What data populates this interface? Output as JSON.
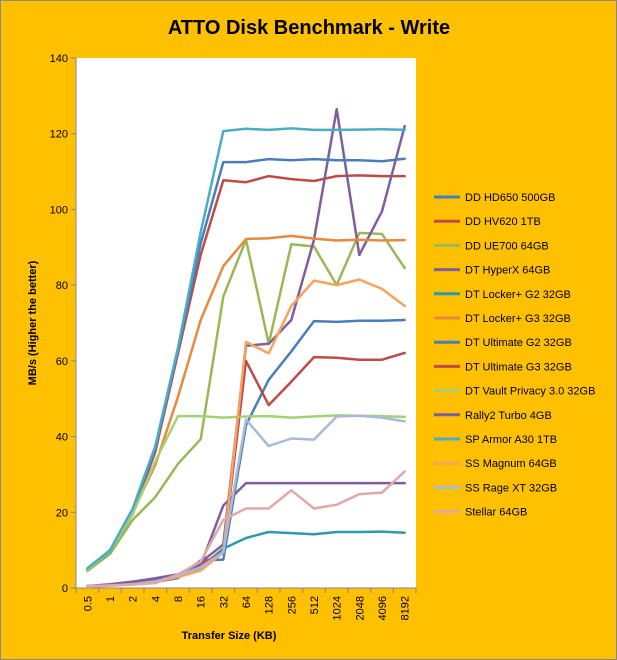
{
  "chart_data": {
    "type": "line",
    "title": "ATTO Disk Benchmark - Write",
    "xlabel": "Transfer Size (KB)",
    "ylabel": "MB/s (Higher the better)",
    "ylim": [
      0,
      140
    ],
    "ytick_step": 20,
    "grid": false,
    "legend_position": "right",
    "categories": [
      "0.5",
      "1",
      "2",
      "4",
      "8",
      "16",
      "32",
      "64",
      "128",
      "256",
      "512",
      "1024",
      "2048",
      "4096",
      "8192"
    ],
    "series": [
      {
        "name": "DD HD650 500GB",
        "color": "#4a7ebb",
        "values": [
          0.5,
          0.7,
          1.0,
          1.6,
          2.6,
          7.3,
          7.5,
          43.0,
          55.0,
          62.5,
          70.5,
          70.3,
          70.6,
          70.6,
          70.8
        ]
      },
      {
        "name": "DD HV620 1TB",
        "color": "#be4b48",
        "values": [
          5.0,
          9.5,
          19.5,
          36.0,
          62.0,
          88.0,
          107.7,
          107.2,
          108.8,
          108.0,
          107.5,
          108.8,
          109.0,
          108.8,
          108.8
        ]
      },
      {
        "name": "DD UE700 64GB",
        "color": "#98b954",
        "values": [
          4.5,
          9.0,
          18.0,
          24.0,
          32.8,
          39.3,
          77.0,
          92.0,
          64.5,
          90.8,
          90.2,
          80.0,
          93.8,
          93.5,
          84.5
        ]
      },
      {
        "name": "DT HyperX 64GB",
        "color": "#7d5fa0",
        "values": [
          0.5,
          0.8,
          1.4,
          2.4,
          3.5,
          6.8,
          11.5,
          64.0,
          64.5,
          70.8,
          92.0,
          126.5,
          88.0,
          99.5,
          122.0
        ]
      },
      {
        "name": "DT Locker+ G2 32GB",
        "color": "#2c9aa8",
        "values": [
          0.5,
          0.7,
          1.1,
          1.8,
          3.0,
          5.4,
          10.4,
          13.2,
          14.8,
          14.5,
          14.2,
          14.8,
          14.8,
          14.9,
          14.6
        ]
      },
      {
        "name": "DT Locker+ G3 32GB",
        "color": "#e8893d",
        "values": [
          4.8,
          9.8,
          20.0,
          32.5,
          50.5,
          70.8,
          85.0,
          92.2,
          92.4,
          93.0,
          92.3,
          91.8,
          92.0,
          91.8,
          91.9
        ]
      },
      {
        "name": "DT Ultimate G2 32GB",
        "color": "#4a7ebb",
        "values": [
          4.8,
          9.6,
          20.5,
          37.0,
          63.0,
          91.0,
          112.5,
          112.5,
          113.3,
          113.0,
          113.3,
          113.0,
          113.0,
          112.7,
          113.4
        ]
      },
      {
        "name": "DT Ultimate G3 32GB",
        "color": "#be4b48",
        "values": [
          0.5,
          0.7,
          1.0,
          1.6,
          3.0,
          6.2,
          9.5,
          60.0,
          48.3,
          54.5,
          61.0,
          60.8,
          60.3,
          60.3,
          62.1
        ]
      },
      {
        "name": "DT Vault Privacy 3.0 32GB",
        "color": "#a6d173",
        "values": [
          4.8,
          9.8,
          19.5,
          33.5,
          45.4,
          45.4,
          45.0,
          45.3,
          45.4,
          45.0,
          45.3,
          45.6,
          45.5,
          45.4,
          45.2
        ]
      },
      {
        "name": "Rally2 Turbo 4GB",
        "color": "#7d5fa0",
        "values": [
          0.5,
          1.0,
          1.7,
          2.6,
          3.6,
          6.0,
          21.8,
          27.7,
          27.7,
          27.7,
          27.7,
          27.7,
          27.7,
          27.7,
          27.7
        ]
      },
      {
        "name": "SP Armor A30 1TB",
        "color": "#4bacc6",
        "values": [
          5.2,
          10.0,
          21.0,
          37.5,
          63.5,
          94.0,
          120.7,
          121.3,
          121.0,
          121.4,
          121.0,
          121.0,
          121.1,
          121.2,
          121.0
        ]
      },
      {
        "name": "SS Magnum 64GB",
        "color": "#f7a35c",
        "values": [
          0.5,
          0.7,
          1.0,
          1.7,
          2.9,
          4.6,
          9.4,
          65.0,
          62.0,
          74.5,
          81.2,
          80.0,
          81.5,
          79.0,
          74.5
        ]
      },
      {
        "name": "SS Rage XT 32GB",
        "color": "#a9b9d8",
        "values": [
          0.4,
          0.6,
          1.0,
          1.7,
          3.3,
          5.5,
          9.5,
          44.5,
          37.5,
          39.5,
          39.2,
          45.3,
          45.5,
          45.0,
          44.0
        ]
      },
      {
        "name": "Stellar 64GB",
        "color": "#e2a8a7",
        "values": [
          0.4,
          0.6,
          0.9,
          1.3,
          3.6,
          7.0,
          18.0,
          21.0,
          21.0,
          25.8,
          21.0,
          22.0,
          24.8,
          25.2,
          30.8
        ]
      }
    ]
  }
}
